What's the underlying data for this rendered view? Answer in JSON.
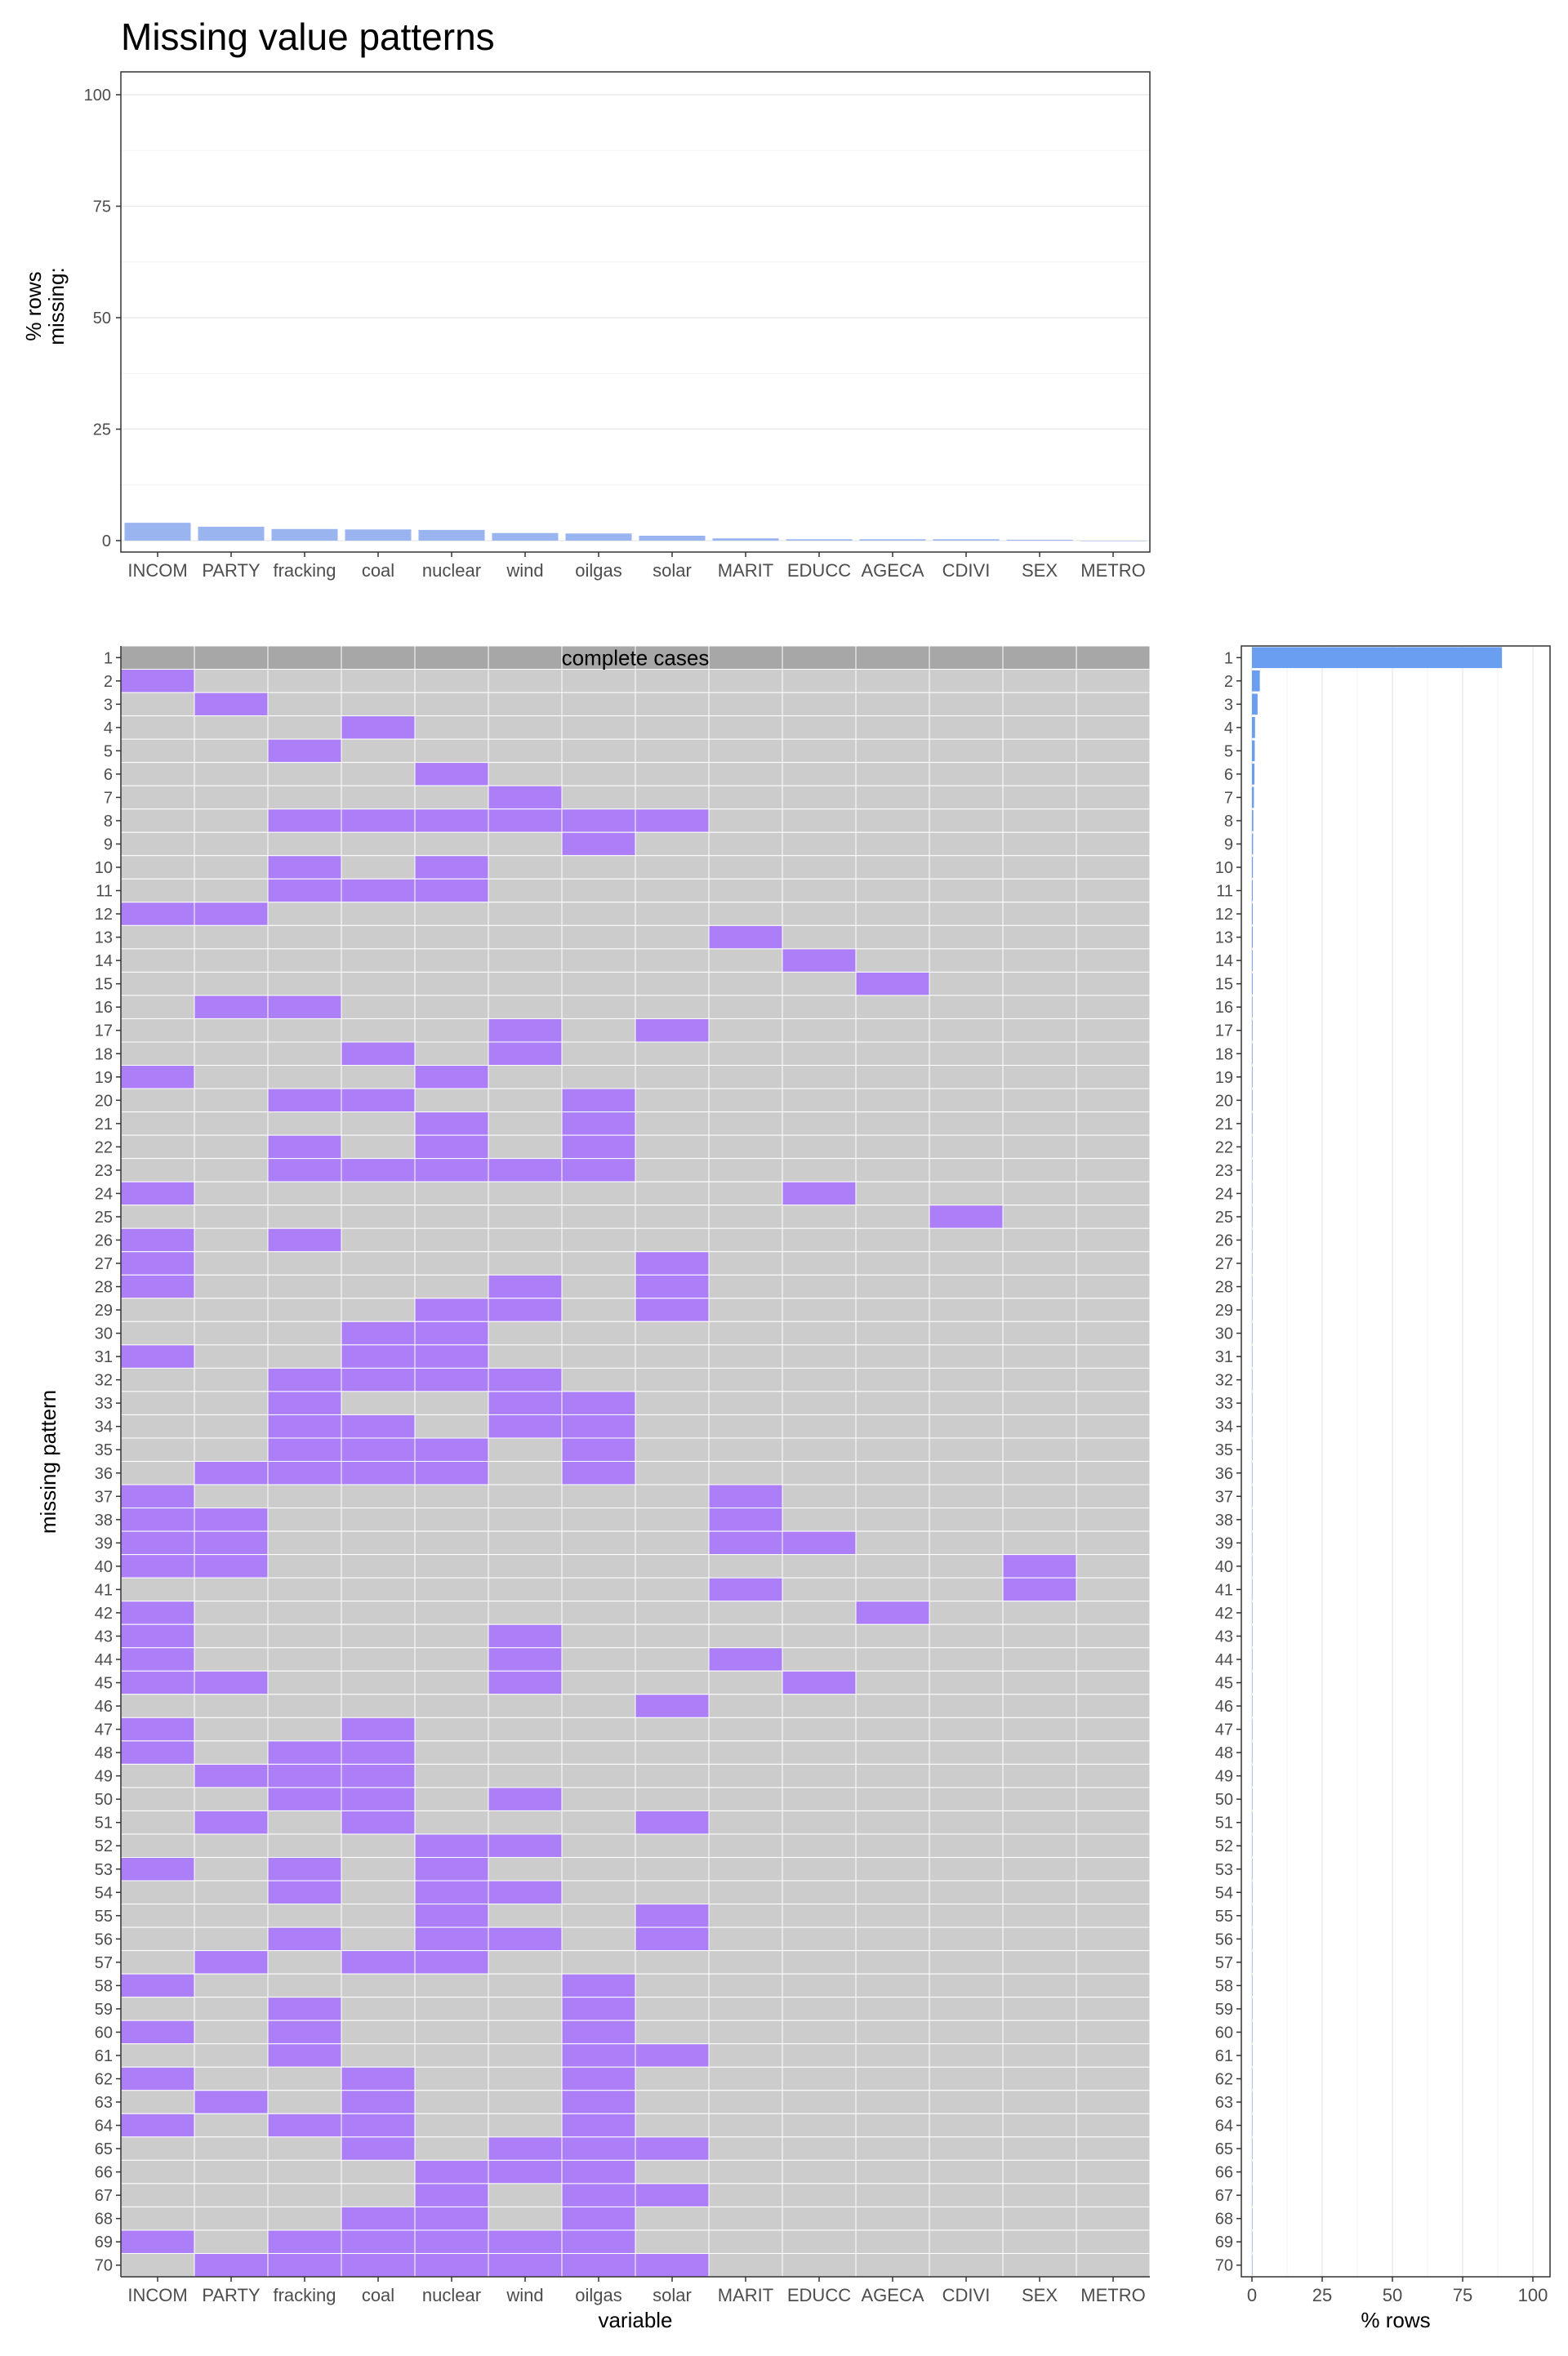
{
  "chart_data": [
    {
      "type": "bar",
      "title": "Missing value patterns",
      "ylabel": "% rows missing:",
      "categories": [
        "INCOM",
        "PARTY",
        "fracking",
        "coal",
        "nuclear",
        "wind",
        "oilgas",
        "solar",
        "MARIT",
        "EDUCC",
        "AGECA",
        "CDIVI",
        "SEX",
        "METRO"
      ],
      "values": [
        4.0,
        3.1,
        2.6,
        2.5,
        2.4,
        1.7,
        1.6,
        1.1,
        0.5,
        0.3,
        0.3,
        0.3,
        0.2,
        0.0
      ],
      "yticks": [
        "0",
        "25",
        "50",
        "75",
        "100"
      ],
      "ylim": [
        0,
        100
      ],
      "grid": true,
      "bar_color": "#9ab4f0"
    },
    {
      "type": "heatmap",
      "xlabel": "variable",
      "ylabel": "missing pattern",
      "annotation": "complete cases",
      "columns": [
        "INCOM",
        "PARTY",
        "fracking",
        "coal",
        "nuclear",
        "wind",
        "oilgas",
        "solar",
        "MARIT",
        "EDUCC",
        "AGECA",
        "CDIVI",
        "SEX",
        "METRO"
      ],
      "rows": [
        "1",
        "2",
        "3",
        "4",
        "5",
        "6",
        "7",
        "8",
        "9",
        "10",
        "11",
        "12",
        "13",
        "14",
        "15",
        "16",
        "17",
        "18",
        "19",
        "20",
        "21",
        "22",
        "23",
        "24",
        "25",
        "26",
        "27",
        "28",
        "29",
        "30",
        "31",
        "32",
        "33",
        "34",
        "35",
        "36",
        "37",
        "38",
        "39",
        "40",
        "41",
        "42",
        "43",
        "44",
        "45",
        "46",
        "47",
        "48",
        "49",
        "50",
        "51",
        "52",
        "53",
        "54",
        "55",
        "56",
        "57",
        "58",
        "59",
        "60",
        "61",
        "62",
        "63",
        "64",
        "65",
        "66",
        "67",
        "68",
        "69",
        "70"
      ],
      "missing": [
        [],
        [
          "INCOM"
        ],
        [
          "PARTY"
        ],
        [
          "coal"
        ],
        [
          "fracking"
        ],
        [
          "nuclear"
        ],
        [
          "wind"
        ],
        [
          "fracking",
          "coal",
          "nuclear",
          "wind",
          "oilgas",
          "solar"
        ],
        [
          "oilgas"
        ],
        [
          "fracking",
          "nuclear"
        ],
        [
          "fracking",
          "coal",
          "nuclear"
        ],
        [
          "INCOM",
          "PARTY"
        ],
        [
          "MARIT"
        ],
        [
          "EDUCC"
        ],
        [
          "AGECA"
        ],
        [
          "PARTY",
          "fracking"
        ],
        [
          "wind",
          "solar"
        ],
        [
          "coal",
          "wind"
        ],
        [
          "INCOM",
          "nuclear"
        ],
        [
          "fracking",
          "coal",
          "oilgas"
        ],
        [
          "nuclear",
          "oilgas"
        ],
        [
          "fracking",
          "nuclear",
          "oilgas"
        ],
        [
          "fracking",
          "coal",
          "nuclear",
          "wind",
          "oilgas"
        ],
        [
          "INCOM",
          "EDUCC"
        ],
        [
          "CDIVI"
        ],
        [
          "INCOM",
          "fracking"
        ],
        [
          "INCOM",
          "solar"
        ],
        [
          "INCOM",
          "wind",
          "solar"
        ],
        [
          "nuclear",
          "wind",
          "solar"
        ],
        [
          "coal",
          "nuclear"
        ],
        [
          "INCOM",
          "coal",
          "nuclear"
        ],
        [
          "fracking",
          "coal",
          "nuclear",
          "wind"
        ],
        [
          "fracking",
          "wind",
          "oilgas"
        ],
        [
          "fracking",
          "coal",
          "wind",
          "oilgas"
        ],
        [
          "fracking",
          "coal",
          "nuclear",
          "oilgas"
        ],
        [
          "PARTY",
          "fracking",
          "coal",
          "nuclear",
          "oilgas"
        ],
        [
          "INCOM",
          "MARIT"
        ],
        [
          "INCOM",
          "PARTY",
          "MARIT"
        ],
        [
          "INCOM",
          "PARTY",
          "MARIT",
          "EDUCC"
        ],
        [
          "INCOM",
          "PARTY",
          "SEX"
        ],
        [
          "MARIT",
          "SEX"
        ],
        [
          "INCOM",
          "AGECA"
        ],
        [
          "INCOM",
          "wind"
        ],
        [
          "INCOM",
          "wind",
          "MARIT"
        ],
        [
          "INCOM",
          "PARTY",
          "wind",
          "EDUCC"
        ],
        [
          "solar"
        ],
        [
          "INCOM",
          "coal"
        ],
        [
          "INCOM",
          "fracking",
          "coal"
        ],
        [
          "PARTY",
          "fracking",
          "coal"
        ],
        [
          "fracking",
          "coal",
          "wind"
        ],
        [
          "PARTY",
          "coal",
          "solar"
        ],
        [
          "nuclear",
          "wind"
        ],
        [
          "INCOM",
          "fracking",
          "nuclear"
        ],
        [
          "fracking",
          "nuclear",
          "wind"
        ],
        [
          "nuclear",
          "solar"
        ],
        [
          "fracking",
          "nuclear",
          "wind",
          "solar"
        ],
        [
          "PARTY",
          "coal",
          "nuclear"
        ],
        [
          "INCOM",
          "oilgas"
        ],
        [
          "fracking",
          "oilgas"
        ],
        [
          "INCOM",
          "fracking",
          "oilgas"
        ],
        [
          "fracking",
          "oilgas",
          "solar"
        ],
        [
          "INCOM",
          "coal",
          "oilgas"
        ],
        [
          "PARTY",
          "coal",
          "oilgas"
        ],
        [
          "INCOM",
          "fracking",
          "coal",
          "oilgas"
        ],
        [
          "coal",
          "wind",
          "oilgas",
          "solar"
        ],
        [
          "nuclear",
          "wind",
          "oilgas"
        ],
        [
          "nuclear",
          "oilgas",
          "solar"
        ],
        [
          "coal",
          "nuclear",
          "oilgas"
        ],
        [
          "INCOM",
          "fracking",
          "coal",
          "nuclear",
          "wind",
          "oilgas"
        ],
        [
          "PARTY",
          "fracking",
          "coal",
          "nuclear",
          "wind",
          "oilgas",
          "solar"
        ]
      ],
      "missing_color": "#ac7ff8",
      "present_color": "#cccccc",
      "complete_color": "#a7a7a7"
    },
    {
      "type": "bar",
      "orientation": "horizontal",
      "xlabel": "% rows",
      "categories": [
        "1",
        "2",
        "3",
        "4",
        "5",
        "6",
        "7",
        "8",
        "9",
        "10",
        "11",
        "12",
        "13",
        "14",
        "15",
        "16",
        "17",
        "18",
        "19",
        "20",
        "21",
        "22",
        "23",
        "24",
        "25",
        "26",
        "27",
        "28",
        "29",
        "30",
        "31",
        "32",
        "33",
        "34",
        "35",
        "36",
        "37",
        "38",
        "39",
        "40",
        "41",
        "42",
        "43",
        "44",
        "45",
        "46",
        "47",
        "48",
        "49",
        "50",
        "51",
        "52",
        "53",
        "54",
        "55",
        "56",
        "57",
        "58",
        "59",
        "60",
        "61",
        "62",
        "63",
        "64",
        "65",
        "66",
        "67",
        "68",
        "69",
        "70"
      ],
      "values": [
        89.0,
        2.8,
        2.0,
        1.1,
        1.0,
        0.9,
        0.7,
        0.5,
        0.4,
        0.35,
        0.3,
        0.3,
        0.3,
        0.25,
        0.25,
        0.2,
        0.2,
        0.2,
        0.2,
        0.2,
        0.2,
        0.15,
        0.15,
        0.1,
        0.1,
        0.1,
        0.1,
        0.1,
        0.1,
        0.1,
        0.1,
        0.1,
        0.1,
        0.1,
        0.1,
        0.1,
        0.1,
        0.1,
        0.1,
        0.1,
        0.1,
        0.1,
        0.1,
        0.1,
        0.1,
        0.1,
        0.1,
        0.1,
        0.1,
        0.1,
        0.1,
        0.1,
        0.1,
        0.1,
        0.1,
        0.1,
        0.1,
        0.1,
        0.1,
        0.1,
        0.1,
        0.1,
        0.1,
        0.1,
        0.1,
        0.1,
        0.1,
        0.1,
        0.1,
        0.1
      ],
      "xticks": [
        "0",
        "25",
        "50",
        "75",
        "100"
      ],
      "xlim": [
        0,
        100
      ],
      "grid": true,
      "bar_color": "#6a9ef0"
    }
  ]
}
